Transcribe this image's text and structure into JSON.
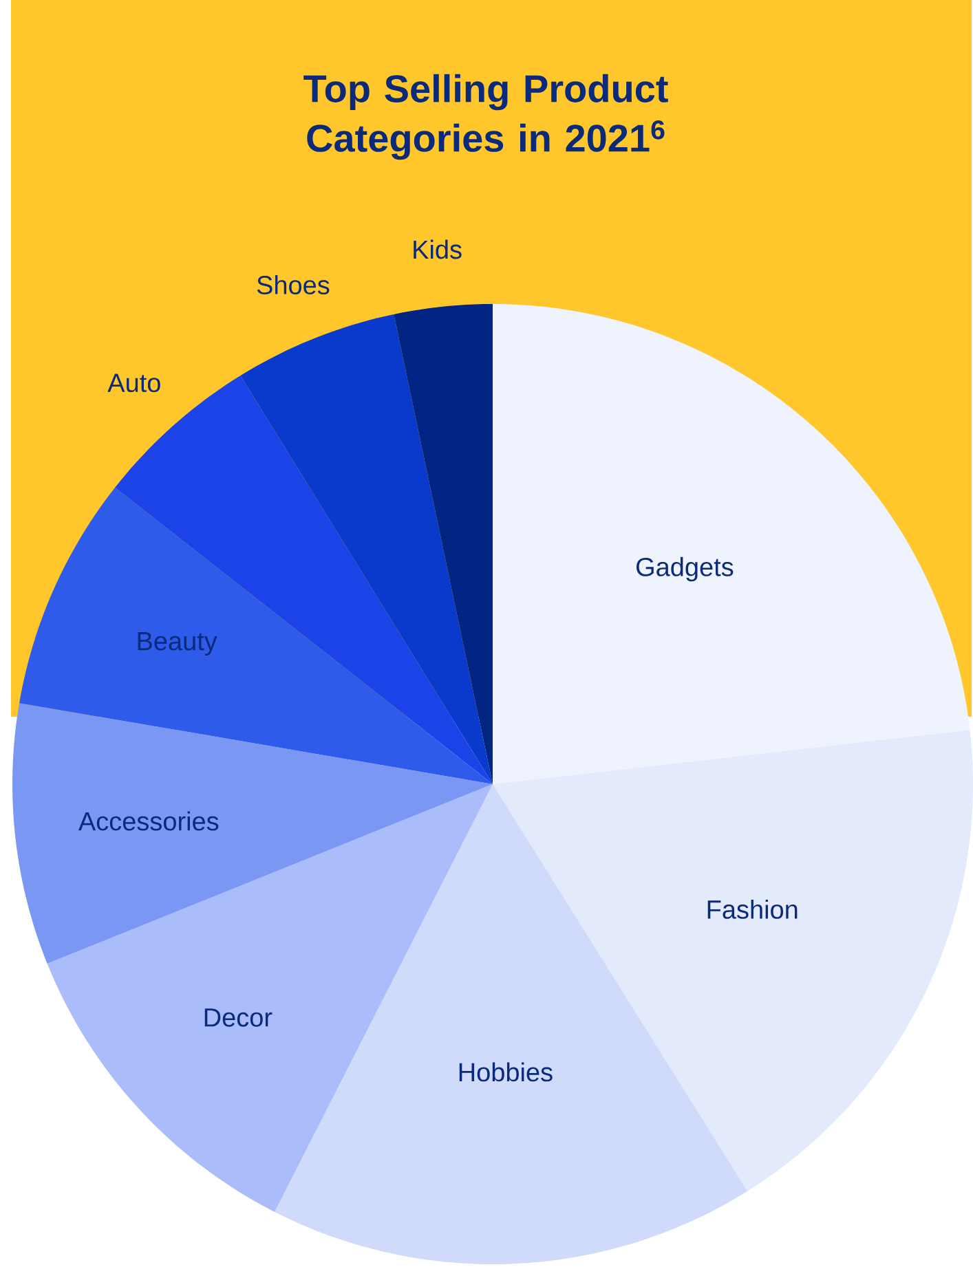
{
  "chart_data": {
    "type": "pie",
    "title": "Top Selling Product Categories in 2021$^{6}$",
    "categories": [
      "Gadgets",
      "Fashion",
      "Hobbies",
      "Decor",
      "Accessories",
      "Beauty",
      "Auto",
      "Shoes",
      "Kids"
    ],
    "values": [
      23.2,
      17.9,
      16.4,
      11.4,
      8.8,
      7.9,
      5.6,
      5.5,
      3.3
    ],
    "colors": [
      "#eef3fd",
      "#e3eafc",
      "#d0dbfb",
      "#aabcfa",
      "#7b97f4",
      "#2e5bea",
      "#1c43e8",
      "#0a3acb",
      "#022482"
    ]
  }
}
